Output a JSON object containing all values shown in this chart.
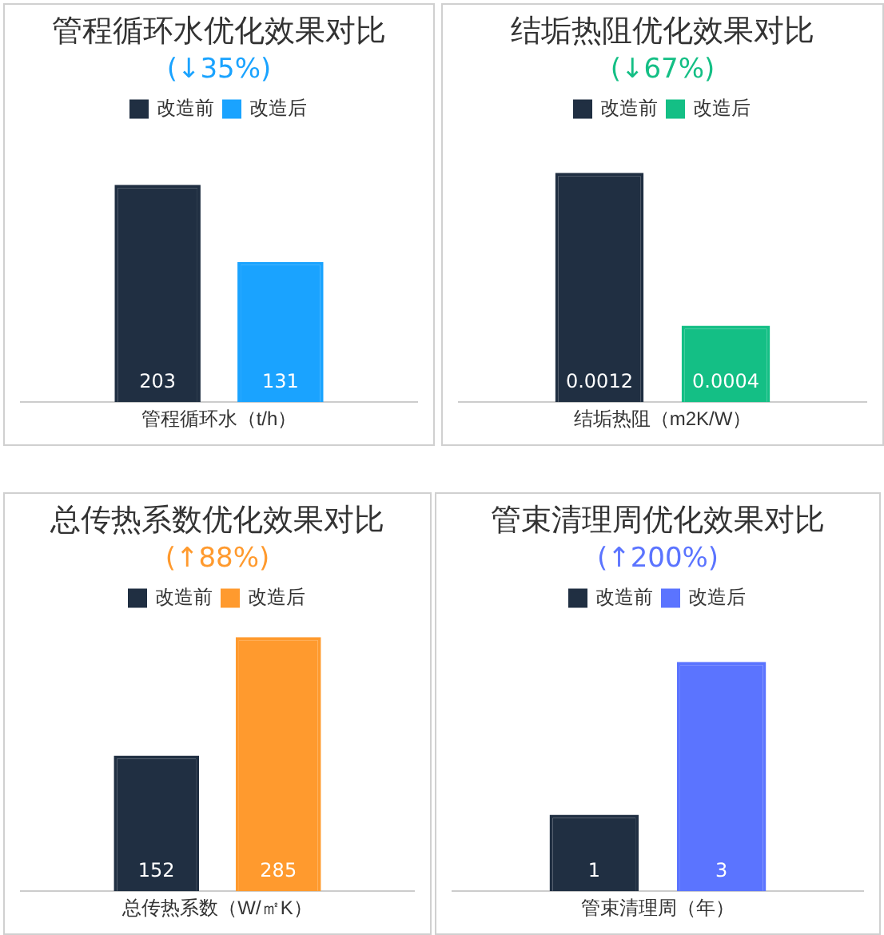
{
  "chart_data": [
    {
      "type": "bar",
      "title": "管程循环水优化效果对比",
      "subtitle": "(↓35%)",
      "xlabel": "管程循环水（t/h）",
      "categories": [
        null
      ],
      "series": [
        {
          "name": "改造前",
          "color": "#202f42",
          "values": [
            203
          ]
        },
        {
          "name": "改造后",
          "color": "#1aa3ff",
          "values": [
            131
          ]
        }
      ],
      "data_labels": true,
      "legend": "top",
      "grid": false
    },
    {
      "type": "bar",
      "title": "结垢热阻优化效果对比",
      "subtitle": "(↓67%)",
      "xlabel": "结垢热阻（m2K/W）",
      "categories": [
        null
      ],
      "series": [
        {
          "name": "改造前",
          "color": "#202f42",
          "values": [
            0.0012
          ]
        },
        {
          "name": "改造后",
          "color": "#14bf85",
          "values": [
            0.0004
          ]
        }
      ],
      "data_labels": true,
      "legend": "top",
      "grid": false
    },
    {
      "type": "bar",
      "title": "总传热系数优化效果对比",
      "subtitle": "(↑88%)",
      "xlabel": "总传热系数（W/㎡K）",
      "categories": [
        null
      ],
      "series": [
        {
          "name": "改造前",
          "color": "#202f42",
          "values": [
            152
          ]
        },
        {
          "name": "改造后",
          "color": "#ff9a2e",
          "values": [
            285
          ]
        }
      ],
      "data_labels": true,
      "legend": "top",
      "grid": false
    },
    {
      "type": "bar",
      "title": "管束清理周优化效果对比",
      "subtitle": "(↑200%)",
      "xlabel": "管束清理周（年）",
      "categories": [
        null
      ],
      "series": [
        {
          "name": "改造前",
          "color": "#202f42",
          "values": [
            1
          ]
        },
        {
          "name": "改造后",
          "color": "#5b74ff",
          "values": [
            3
          ]
        }
      ],
      "data_labels": true,
      "legend": "top",
      "grid": false
    }
  ]
}
